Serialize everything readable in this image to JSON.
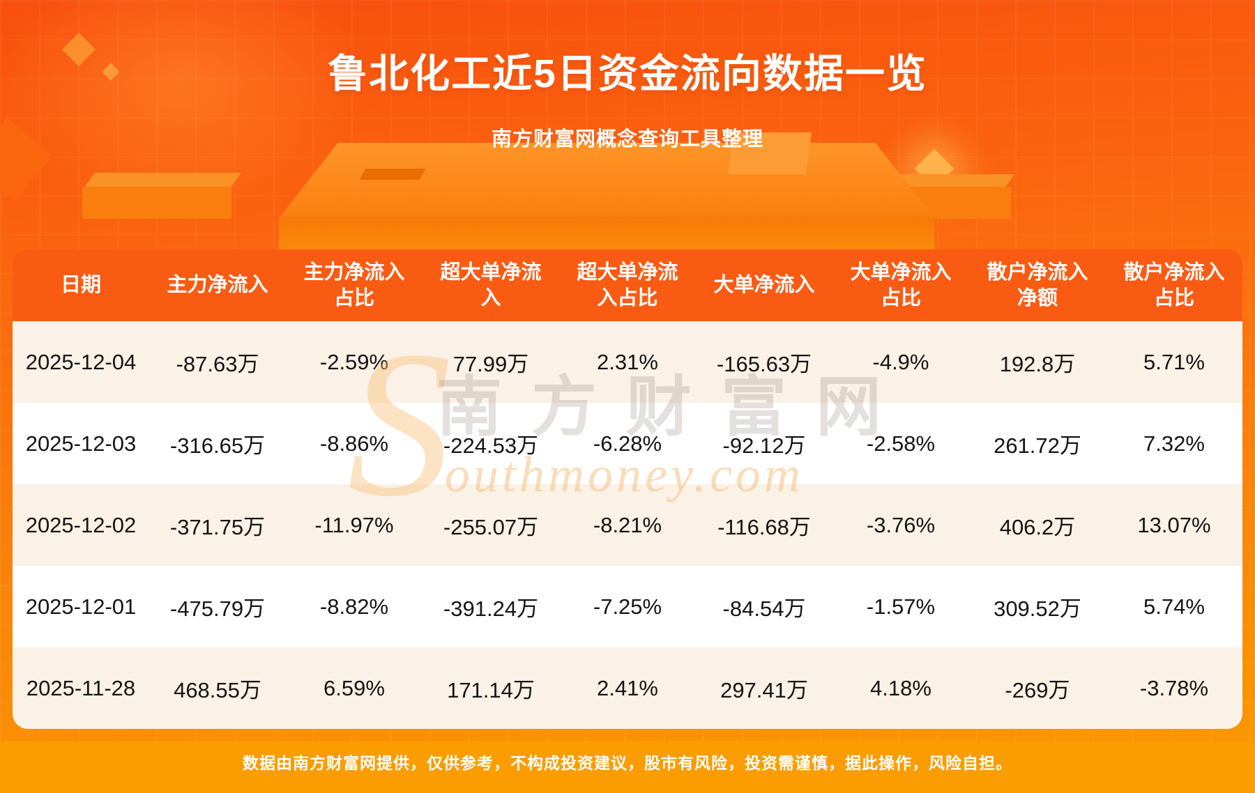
{
  "page": {
    "title": "鲁北化工近5日资金流向数据一览",
    "subtitle": "南方财富网概念查询工具整理",
    "footer": "数据由南方财富网提供，仅供参考，不构成投资建议，股市有风险，投资需谨慎，据此操作，风险自担。"
  },
  "watermark": {
    "initial": "S",
    "cn": "南方财富网",
    "en": "outhmoney.com"
  },
  "colors": {
    "background_top": "#f94f0e",
    "background_bottom": "#fa9a02",
    "header_bg": "#fa5b13",
    "row_cream": "#faf1e7",
    "row_white": "#ffffff",
    "footer_bar": "#fb9c00",
    "text_dark": "#141414",
    "text_white": "#ffffff"
  },
  "chart_data": {
    "type": "table",
    "title": "鲁北化工近5日资金流向数据一览",
    "subtitle": "南方财富网概念查询工具整理",
    "columns": [
      "日期",
      "主力净流入",
      "主力净流入占比",
      "超大单净流入",
      "超大单净流入占比",
      "大单净流入",
      "大单净流入占比",
      "散户净流入净额",
      "散户净流入占比"
    ],
    "rows": [
      [
        "2025-12-04",
        "-87.63万",
        "-2.59%",
        "77.99万",
        "2.31%",
        "-165.63万",
        "-4.9%",
        "192.8万",
        "5.71%"
      ],
      [
        "2025-12-03",
        "-316.65万",
        "-8.86%",
        "-224.53万",
        "-6.28%",
        "-92.12万",
        "-2.58%",
        "261.72万",
        "7.32%"
      ],
      [
        "2025-12-02",
        "-371.75万",
        "-11.97%",
        "-255.07万",
        "-8.21%",
        "-116.68万",
        "-3.76%",
        "406.2万",
        "13.07%"
      ],
      [
        "2025-12-01",
        "-475.79万",
        "-8.82%",
        "-391.24万",
        "-7.25%",
        "-84.54万",
        "-1.57%",
        "309.52万",
        "5.74%"
      ],
      [
        "2025-11-28",
        "468.55万",
        "6.59%",
        "171.14万",
        "2.41%",
        "297.41万",
        "4.18%",
        "-269万",
        "-3.78%"
      ]
    ]
  }
}
